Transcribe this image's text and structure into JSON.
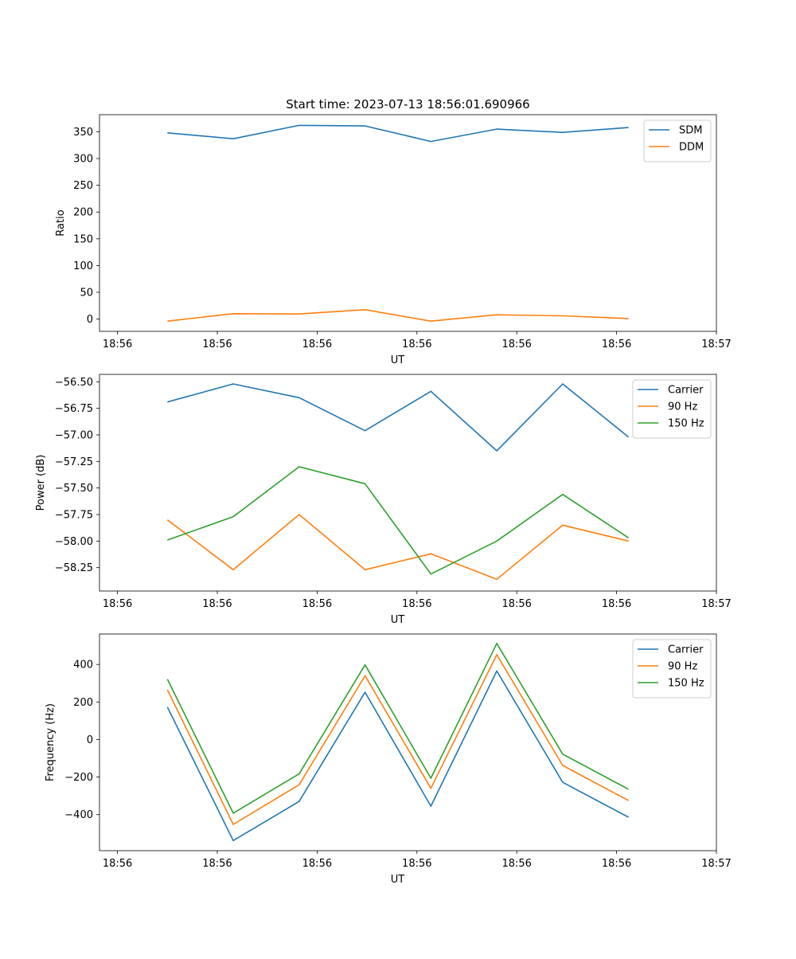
{
  "chart_data": [
    {
      "type": "line",
      "title": "Start time: 2023-07-13 18:56:01.690966",
      "xlabel": "UT",
      "ylabel": "Ratio",
      "x_tick_labels": [
        "18:56",
        "18:56",
        "18:56",
        "18:56",
        "18:56",
        "18:56",
        "18:56"
      ],
      "x_end_label": "18:57",
      "x": [
        0.5,
        1.16,
        1.82,
        2.48,
        3.14,
        3.8,
        4.46,
        5.12
      ],
      "xlim": [
        -0.18,
        6.0
      ],
      "ylim": [
        -23,
        382
      ],
      "yticks": [
        0,
        50,
        100,
        150,
        200,
        250,
        300,
        350
      ],
      "ytick_labels": [
        "0",
        "50",
        "100",
        "150",
        "200",
        "250",
        "300",
        "350"
      ],
      "legend_position": "top-right",
      "series": [
        {
          "name": "SDM",
          "color": "#1f77b4",
          "values": [
            348,
            337,
            362,
            361,
            332,
            355,
            349,
            358
          ]
        },
        {
          "name": "DDM",
          "color": "#ff7f0e",
          "values": [
            -4,
            10,
            9.5,
            17.5,
            -4,
            8,
            6,
            1
          ]
        }
      ]
    },
    {
      "type": "line",
      "title": "",
      "xlabel": "UT",
      "ylabel": "Power (dB)",
      "x_tick_labels": [
        "18:56",
        "18:56",
        "18:56",
        "18:56",
        "18:56",
        "18:56",
        "18:56"
      ],
      "x_end_label": "18:57",
      "x": [
        0.5,
        1.16,
        1.82,
        2.48,
        3.14,
        3.8,
        4.46,
        5.12
      ],
      "xlim": [
        -0.18,
        6.0
      ],
      "ylim": [
        -58.47,
        -56.43
      ],
      "yticks": [
        -58.25,
        -58.0,
        -57.75,
        -57.5,
        -57.25,
        -57.0,
        -56.75,
        -56.5
      ],
      "ytick_labels": [
        "−58.25",
        "−58.00",
        "−57.75",
        "−57.50",
        "−57.25",
        "−57.00",
        "−56.75",
        "−56.50"
      ],
      "legend_position": "top-right",
      "series": [
        {
          "name": "Carrier",
          "color": "#1f77b4",
          "values": [
            -56.69,
            -56.52,
            -56.65,
            -56.96,
            -56.59,
            -57.15,
            -56.52,
            -57.02
          ]
        },
        {
          "name": "90 Hz",
          "color": "#ff7f0e",
          "values": [
            -57.8,
            -58.27,
            -57.75,
            -58.27,
            -58.12,
            -58.36,
            -57.85,
            -58.0
          ]
        },
        {
          "name": "150 Hz",
          "color": "#2ca02c",
          "values": [
            -57.99,
            -57.77,
            -57.3,
            -57.46,
            -58.31,
            -58.0,
            -57.56,
            -57.97
          ]
        }
      ]
    },
    {
      "type": "line",
      "title": "",
      "xlabel": "UT",
      "ylabel": "Frequency (Hz)",
      "x_tick_labels": [
        "18:56",
        "18:56",
        "18:56",
        "18:56",
        "18:56",
        "18:56",
        "18:56"
      ],
      "x_end_label": "18:57",
      "x": [
        0.5,
        1.16,
        1.82,
        2.48,
        3.14,
        3.8,
        4.46,
        5.12
      ],
      "xlim": [
        -0.18,
        6.0
      ],
      "ylim": [
        -592,
        562
      ],
      "yticks": [
        -400,
        -200,
        0,
        200,
        400
      ],
      "ytick_labels": [
        "−400",
        "−200",
        "0",
        "200",
        "400"
      ],
      "legend_position": "top-right",
      "series": [
        {
          "name": "Carrier",
          "color": "#1f77b4",
          "values": [
            173,
            -538,
            -330,
            252,
            -355,
            365,
            -228,
            -414
          ]
        },
        {
          "name": "90 Hz",
          "color": "#ff7f0e",
          "values": [
            265,
            -452,
            -241,
            340,
            -260,
            452,
            -138,
            -325
          ]
        },
        {
          "name": "150 Hz",
          "color": "#2ca02c",
          "values": [
            322,
            -392,
            -183,
            398,
            -206,
            512,
            -78,
            -265
          ]
        }
      ]
    }
  ]
}
